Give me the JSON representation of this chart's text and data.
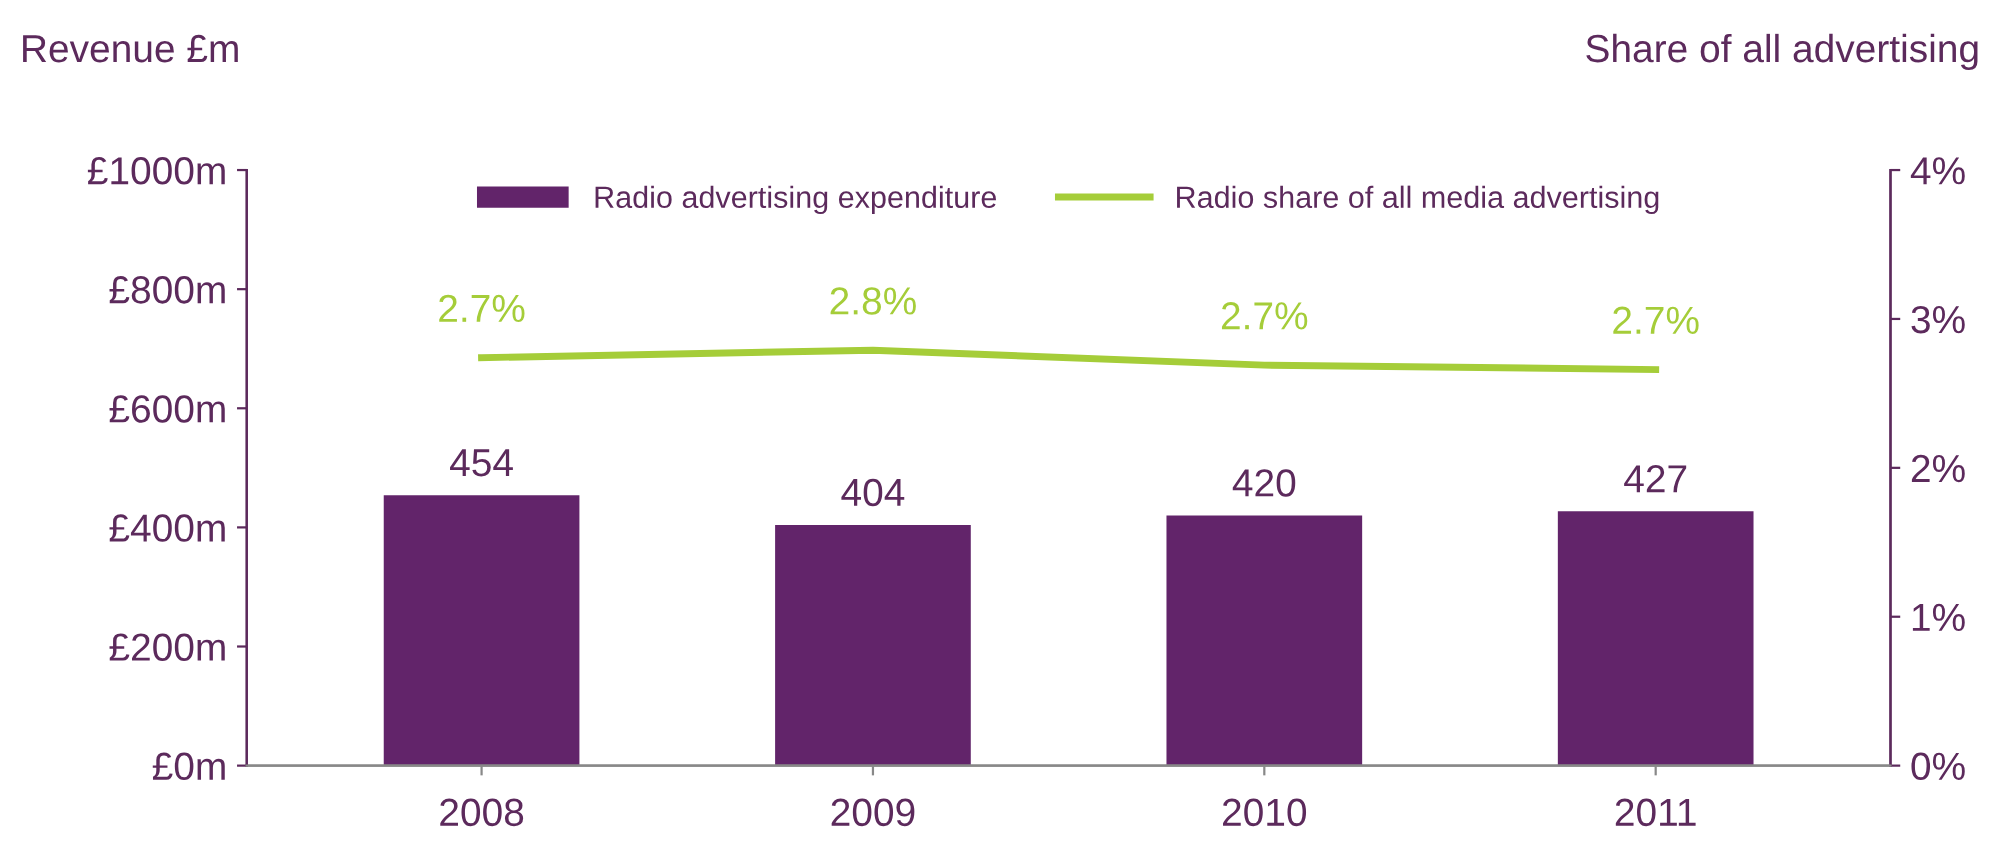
{
  "chart_data": {
    "type": "bar",
    "ylabel": "Revenue £m",
    "y2label": "Share of all advertising",
    "categories": [
      "2008",
      "2009",
      "2010",
      "2011"
    ],
    "series": [
      {
        "name": "Radio advertising expenditure",
        "color": "#62246a",
        "values": [
          454,
          404,
          420,
          427
        ],
        "data_labels": true
      },
      {
        "name": "Radio share of all media advertising",
        "type": "line",
        "axis": "y2",
        "color": "#a5cd39",
        "values": [
          2.74,
          2.79,
          2.69,
          2.66
        ],
        "value_labels": [
          "2.7%",
          "2.8%",
          "2.7%",
          "2.7%"
        ]
      }
    ],
    "ylim": [
      0,
      1000
    ],
    "yticks": [
      {
        "value": 0,
        "label": "£0m"
      },
      {
        "value": 200,
        "label": "£200m"
      },
      {
        "value": 400,
        "label": "£400m"
      },
      {
        "value": 600,
        "label": "£600m"
      },
      {
        "value": 800,
        "label": "£800m"
      },
      {
        "value": 1000,
        "label": "£1000m"
      }
    ],
    "y2lim": [
      0,
      4
    ],
    "y2ticks": [
      {
        "value": 0,
        "label": "0%"
      },
      {
        "value": 1,
        "label": "1%"
      },
      {
        "value": 2,
        "label": "2%"
      },
      {
        "value": 3,
        "label": "3%"
      },
      {
        "value": 4,
        "label": "4%"
      }
    ],
    "grid": false,
    "legend": "top",
    "marker": "none",
    "line_style": "solid"
  }
}
